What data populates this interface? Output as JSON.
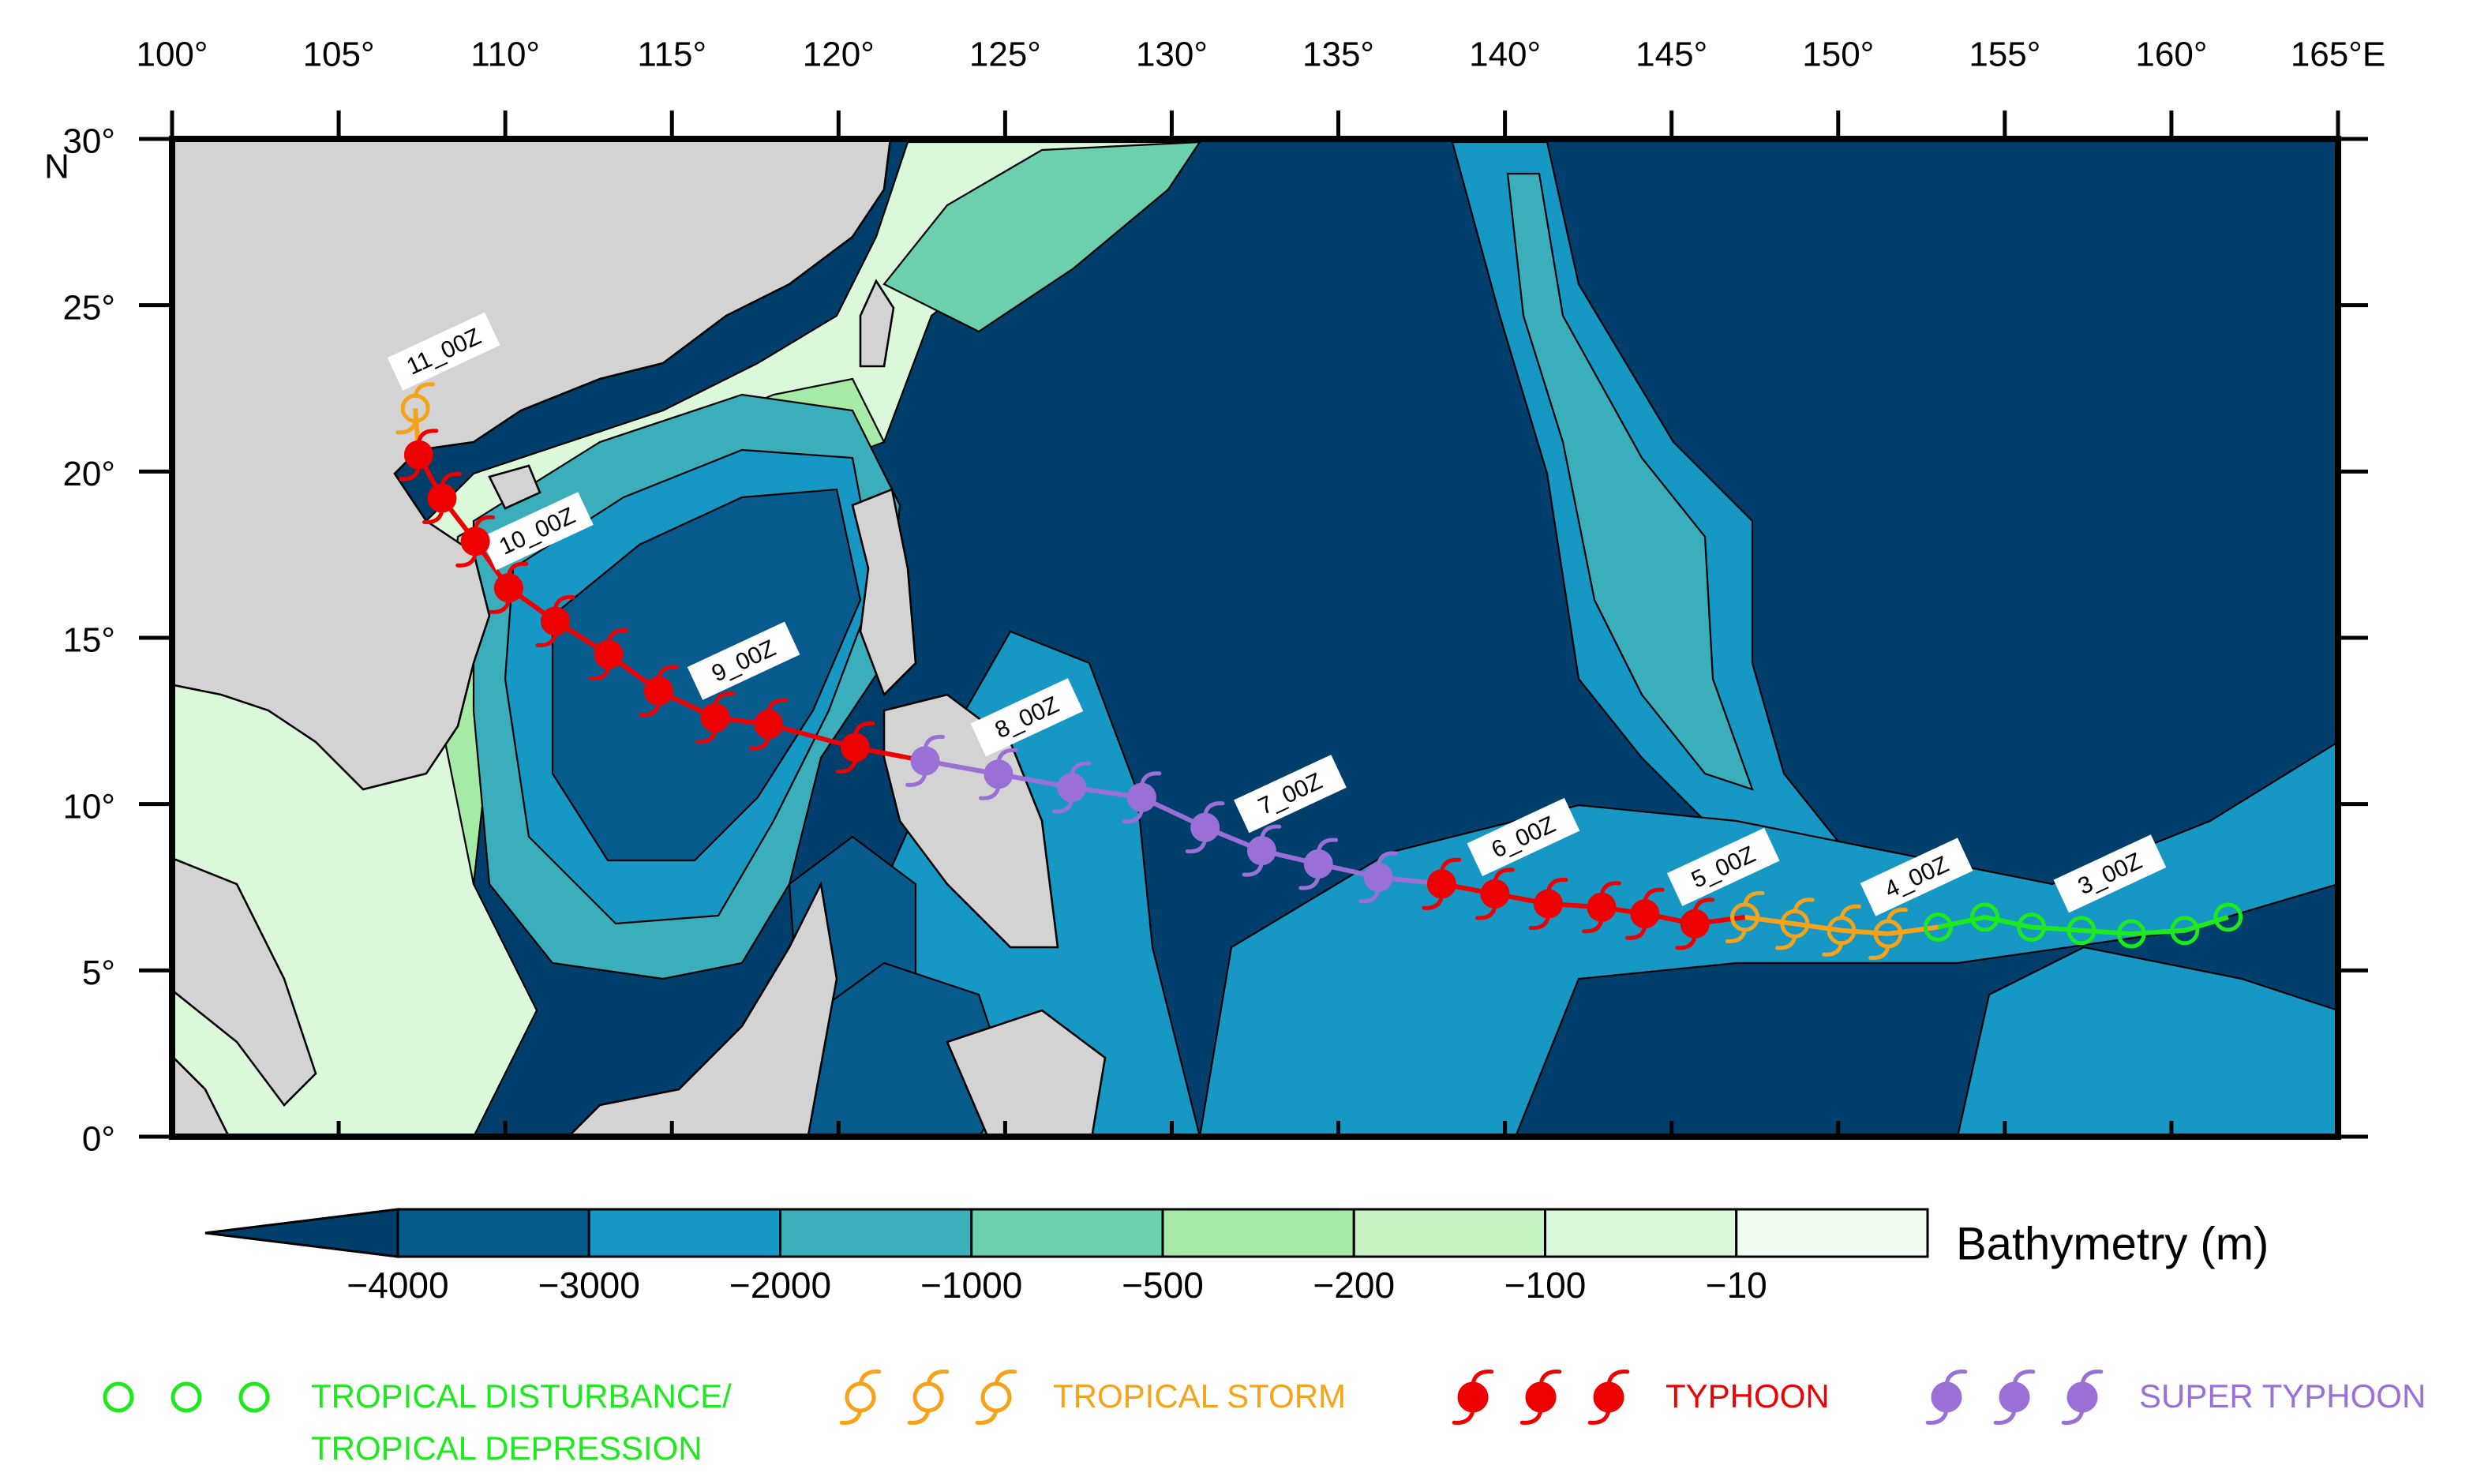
{
  "map": {
    "xlim": [
      100,
      165
    ],
    "ylim": [
      0,
      30
    ],
    "xticks": [
      {
        "value": 100,
        "label": "100°"
      },
      {
        "value": 105,
        "label": "105°"
      },
      {
        "value": 110,
        "label": "110°"
      },
      {
        "value": 115,
        "label": "115°"
      },
      {
        "value": 120,
        "label": "120°"
      },
      {
        "value": 125,
        "label": "125°"
      },
      {
        "value": 130,
        "label": "130°"
      },
      {
        "value": 135,
        "label": "135°"
      },
      {
        "value": 140,
        "label": "140°"
      },
      {
        "value": 145,
        "label": "145°"
      },
      {
        "value": 150,
        "label": "150°"
      },
      {
        "value": 155,
        "label": "155°"
      },
      {
        "value": 160,
        "label": "160°"
      },
      {
        "value": 165,
        "label": "165°E"
      }
    ],
    "yticks": [
      {
        "value": 0,
        "label": "0°"
      },
      {
        "value": 5,
        "label": "5°"
      },
      {
        "value": 10,
        "label": "10°"
      },
      {
        "value": 15,
        "label": "15°"
      },
      {
        "value": 20,
        "label": "20°"
      },
      {
        "value": 25,
        "label": "25°"
      },
      {
        "value": 30,
        "label": "30°"
      }
    ],
    "y_hemisphere": "N",
    "track": [
      {
        "color": "#1ee81e",
        "lon": [
          161.7,
          160.4,
          158.8,
          157.3,
          155.8,
          154.4,
          153.0
        ],
        "lat": [
          6.6,
          6.2,
          6.1,
          6.2,
          6.3,
          6.6,
          6.3
        ],
        "labels": [
          null,
          null,
          null,
          "3_00Z",
          null,
          null,
          null
        ]
      },
      {
        "color": "#f5a31a",
        "lon": [
          151.5,
          150.1,
          148.7,
          147.2
        ],
        "lat": [
          6.1,
          6.2,
          6.4,
          6.6
        ],
        "labels": [
          "4_00Z",
          null,
          null,
          null
        ]
      },
      {
        "color": "#ee0000",
        "lon": [
          145.7,
          144.2,
          142.9,
          141.3,
          139.7,
          138.1
        ],
        "lat": [
          6.4,
          6.7,
          6.9,
          7.0,
          7.3,
          7.6
        ],
        "labels": [
          "5_00Z",
          null,
          null,
          null,
          "6_00Z",
          null
        ]
      },
      {
        "color": "#9a6fd6",
        "lon": [
          136.2,
          134.4,
          132.7,
          131.0,
          129.1,
          127.0,
          124.8,
          122.6
        ],
        "lat": [
          7.8,
          8.2,
          8.6,
          9.3,
          10.2,
          10.5,
          10.9,
          11.3
        ],
        "labels": [
          null,
          null,
          "7_00Z",
          null,
          null,
          null,
          "8_00Z",
          null
        ]
      },
      {
        "color": "#ee0000",
        "lon": [
          120.5,
          117.9,
          116.3,
          114.6,
          113.1,
          111.5,
          110.1,
          109.1,
          108.1,
          107.4
        ],
        "lat": [
          11.7,
          12.4,
          12.6,
          13.4,
          14.5,
          15.5,
          16.5,
          17.9,
          19.2,
          20.5
        ],
        "labels": [
          null,
          null,
          "9_00Z",
          null,
          null,
          null,
          "10_00Z",
          null,
          null,
          null
        ]
      },
      {
        "color": "#f5a31a",
        "lon": [
          107.3
        ],
        "lat": [
          21.9
        ],
        "labels": [
          "11_00Z"
        ]
      }
    ],
    "colorbar": {
      "title": "Bathymetry (m)",
      "levels": [
        {
          "value": -4000,
          "label": "−4000"
        },
        {
          "value": -3000,
          "label": "−3000"
        },
        {
          "value": -2000,
          "label": "−2000"
        },
        {
          "value": -1000,
          "label": "−1000"
        },
        {
          "value": -500,
          "label": "−500"
        },
        {
          "value": -200,
          "label": "−200"
        },
        {
          "value": -100,
          "label": "−100"
        },
        {
          "value": -10,
          "label": "−10"
        }
      ],
      "colors": [
        "#003f6b",
        "#075a8c",
        "#1697c4",
        "#3aaebb",
        "#6ccfae",
        "#a5eba5",
        "#c6f3c3",
        "#dcf8da",
        "#f0fcf0"
      ]
    },
    "legend": [
      {
        "label": [
          "TROPICAL DISTURBANCE/",
          "TROPICAL DEPRESSION"
        ],
        "color": "#1ee81e",
        "symbol": "circle"
      },
      {
        "label": [
          "TROPICAL STORM"
        ],
        "color": "#f5a31a",
        "symbol": "cyclone-open"
      },
      {
        "label": [
          "TYPHOON"
        ],
        "color": "#ee0000",
        "symbol": "cyclone-filled"
      },
      {
        "label": [
          "SUPER TYPHOON"
        ],
        "color": "#9a6fd6",
        "symbol": "cyclone-filled"
      }
    ]
  }
}
